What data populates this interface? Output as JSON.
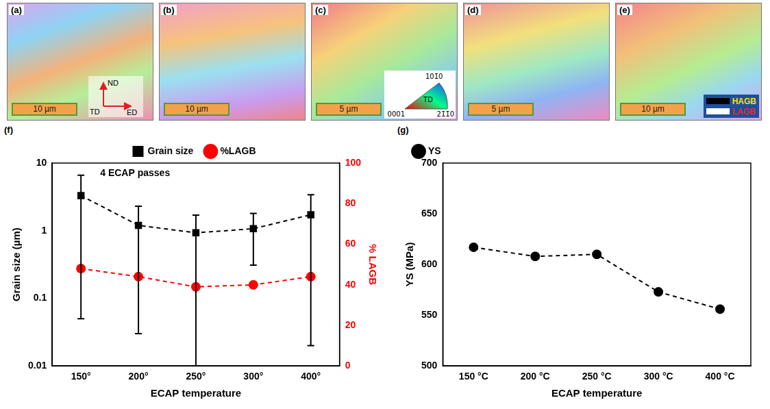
{
  "panels": [
    {
      "label": "(a)",
      "scale_bar": "10 µm",
      "axes": {
        "up": "ND",
        "origin": "TD",
        "right": "ED"
      }
    },
    {
      "label": "(b)",
      "scale_bar": "10 µm"
    },
    {
      "label": "(c)",
      "scale_bar": "5 µm",
      "ipf_key": {
        "top": "101̄0",
        "left": "0001",
        "right": "21̄1̄0",
        "direction": "TD"
      }
    },
    {
      "label": "(d)",
      "scale_bar": "5 µm"
    },
    {
      "label": "(e)",
      "scale_bar": "10 µm",
      "boundary_key": [
        {
          "name": "HAGB",
          "color": "#000000"
        },
        {
          "name": "LAGB",
          "color": "#ffffff"
        }
      ]
    }
  ],
  "chart_data": [
    {
      "panel_label": "(f)",
      "type": "line",
      "annotation": "4 ECAP passes",
      "categories": [
        "150°",
        "200°",
        "250°",
        "300°",
        "400°"
      ],
      "x_label": "ECAP temperature",
      "y_label": "Grain size (µm)",
      "y2_label": "% LAGB",
      "log": "y",
      "ylim": [
        0.01,
        10
      ],
      "yticks": [
        0.01,
        0.1,
        1,
        10
      ],
      "y2lim": [
        0,
        100
      ],
      "y2ticks": [
        0,
        20,
        40,
        60,
        80,
        100
      ],
      "grid": false,
      "legend": "top",
      "series": [
        {
          "name": "Grain size",
          "color": "#000000",
          "marker": "square",
          "line_style": "dashed",
          "values": [
            3.3,
            1.2,
            0.93,
            1.07,
            1.72
          ],
          "error_low": [
            0.05,
            0.03,
            0.01,
            0.31,
            0.02
          ],
          "error_high": [
            6.6,
            2.3,
            1.7,
            1.8,
            3.4
          ]
        },
        {
          "name": "%LAGB",
          "color": "#ff0000",
          "marker": "circle",
          "line_style": "dashed",
          "axis": "y2",
          "values": [
            48,
            44,
            39,
            40,
            44
          ]
        }
      ]
    },
    {
      "panel_label": "(g)",
      "type": "line",
      "categories": [
        "150 °C",
        "200 °C",
        "250 °C",
        "300 °C",
        "400 °C"
      ],
      "x_label": "ECAP temperature",
      "y_label": "YS (MPa)",
      "ylim": [
        500,
        700
      ],
      "yticks": [
        500,
        550,
        600,
        650,
        700
      ],
      "grid": false,
      "legend": "top-left",
      "series": [
        {
          "name": "YS",
          "color": "#000000",
          "marker": "circle",
          "line_style": "dashed",
          "values": [
            617,
            608,
            610,
            573,
            556
          ]
        }
      ]
    }
  ]
}
